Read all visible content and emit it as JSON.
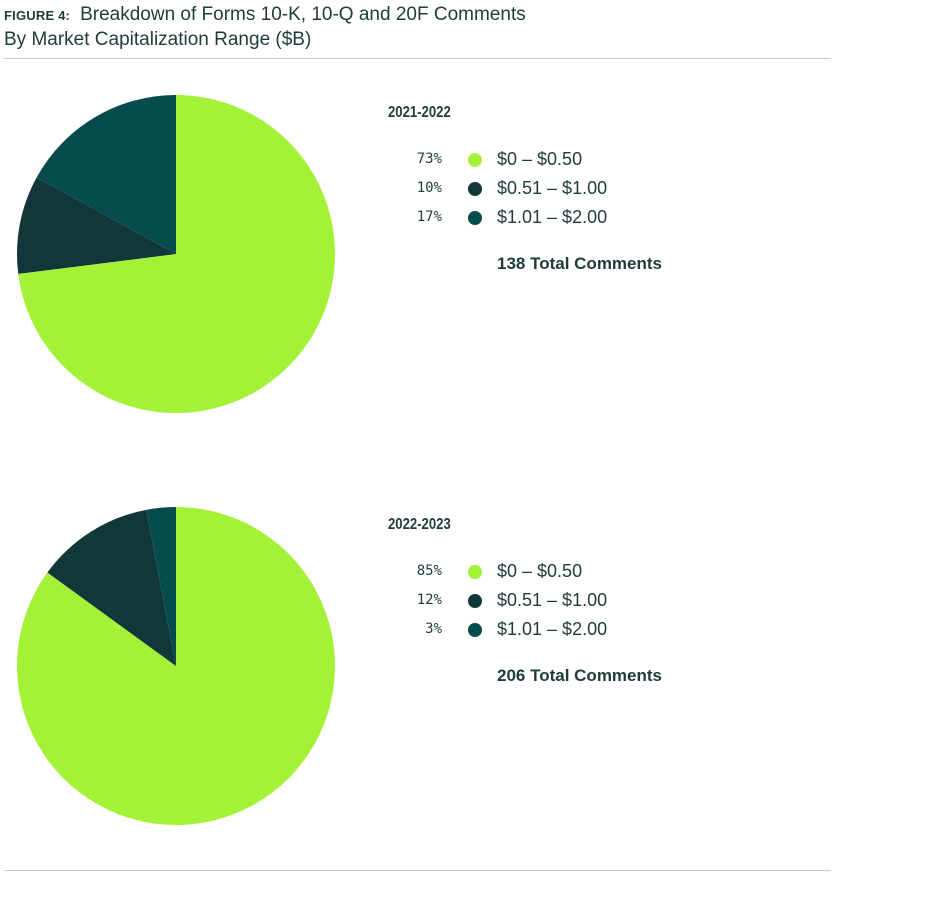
{
  "header": {
    "figure_label": "FIGURE 4:",
    "title": "Breakdown of Forms 10-K, 10-Q and 20F Comments",
    "subtitle": "By Market Capitalization Range ($B)"
  },
  "colors": {
    "range_0_050": "#a3f237",
    "range_051_100": "#11373a",
    "range_101_200": "#064b4d"
  },
  "chart_data": [
    {
      "type": "pie",
      "title": "2021-2022",
      "categories": [
        "$0 – $0.50",
        "$0.51 – $1.00",
        "$1.01 – $2.00"
      ],
      "values": [
        73,
        10,
        17
      ],
      "value_labels": [
        "73%",
        "10%",
        "17%"
      ],
      "colors": [
        "#a3f237",
        "#11373a",
        "#064b4d"
      ],
      "total_label": "138 Total Comments",
      "legend": "right"
    },
    {
      "type": "pie",
      "title": "2022-2023",
      "categories": [
        "$0 – $0.50",
        "$0.51 – $1.00",
        "$1.01 – $2.00"
      ],
      "values": [
        85,
        12,
        3
      ],
      "value_labels": [
        "85%",
        "12%",
        "3%"
      ],
      "colors": [
        "#a3f237",
        "#11373a",
        "#064b4d"
      ],
      "total_label": "206 Total Comments",
      "legend": "right"
    }
  ]
}
